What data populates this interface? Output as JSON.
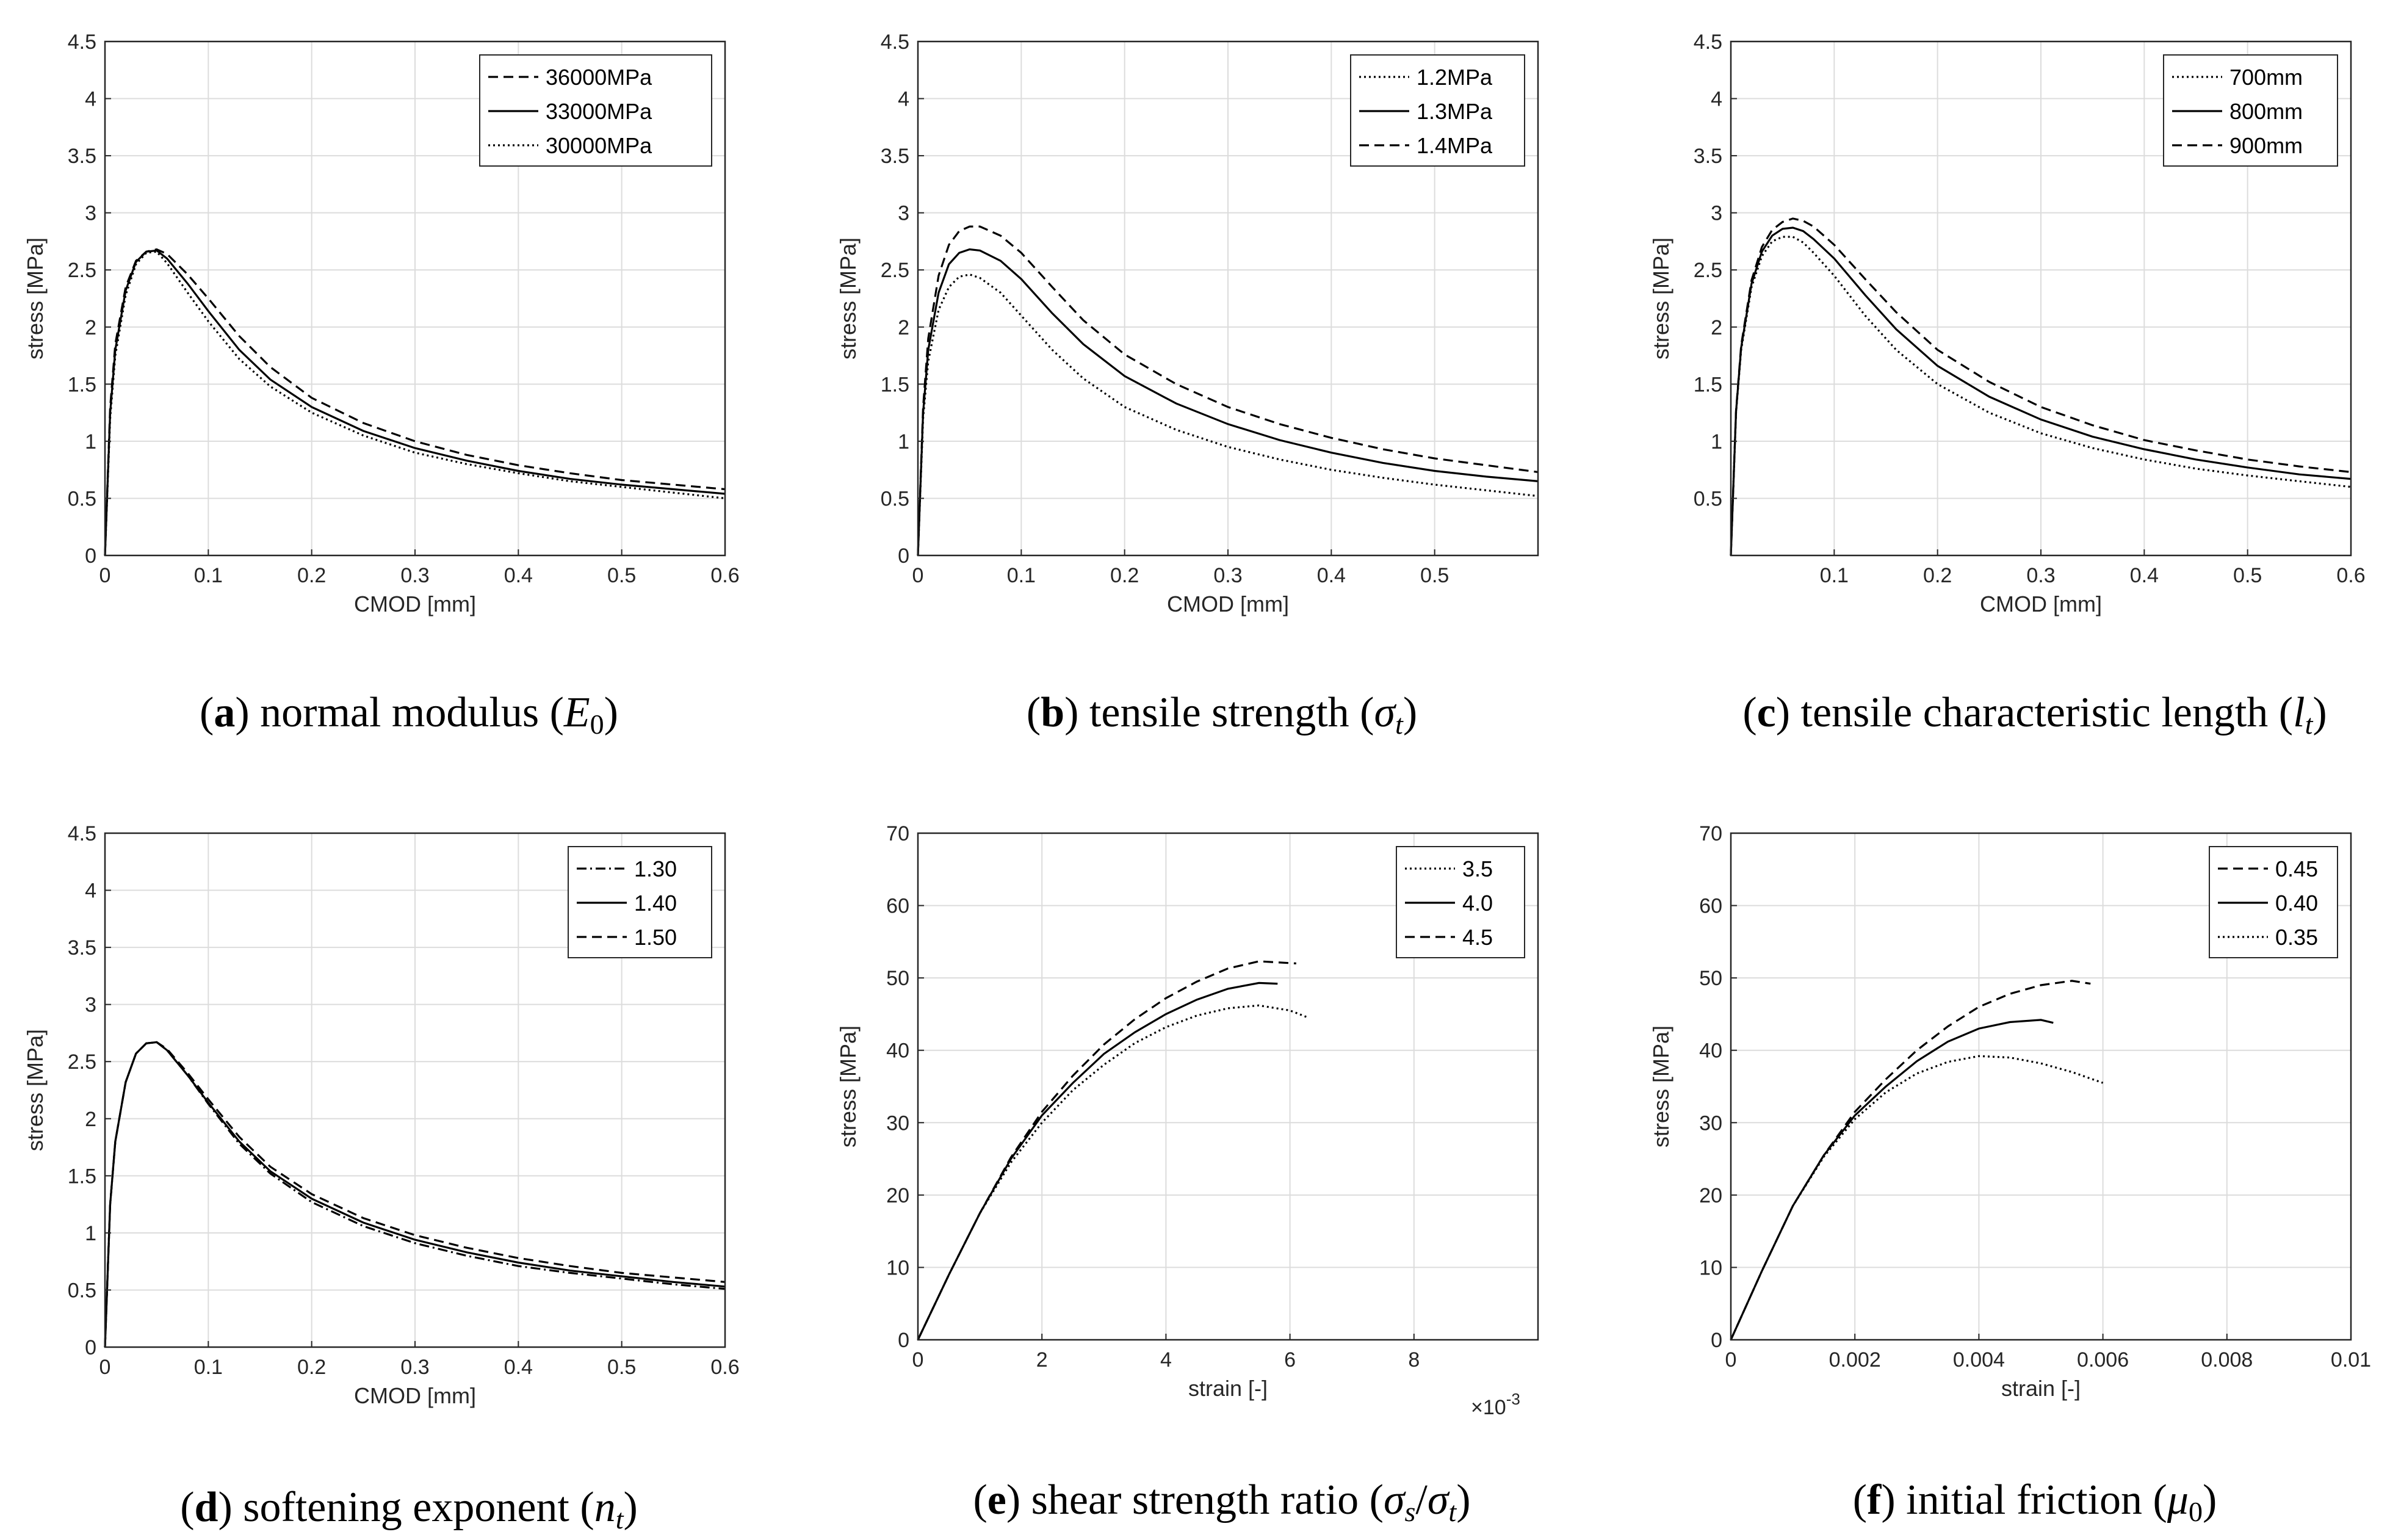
{
  "chart_data": [
    {
      "type": "line",
      "id": "a",
      "caption": {
        "letter": "a",
        "text": "normal modulus",
        "symbol": "E",
        "sub": "0"
      },
      "xlabel": "CMOD [mm]",
      "ylabel": "stress [MPa]",
      "xlim": [
        0,
        0.6
      ],
      "ylim": [
        0,
        4.5
      ],
      "xticks": [
        0,
        0.1,
        0.2,
        0.3,
        0.4,
        0.5,
        0.6
      ],
      "xtick_labels": [
        "0",
        "0.1",
        "0.2",
        "0.3",
        "0.4",
        "0.5",
        "0.6"
      ],
      "yticks": [
        0,
        0.5,
        1,
        1.5,
        2,
        2.5,
        3,
        3.5,
        4,
        4.5
      ],
      "ytick_labels": [
        "0",
        "0.5",
        "1",
        "1.5",
        "2",
        "2.5",
        "3",
        "3.5",
        "4",
        "4.5"
      ],
      "grid": true,
      "legend": "top-right",
      "series": [
        {
          "name": "36000MPa",
          "style": "dashed",
          "x": [
            0,
            0.005,
            0.01,
            0.02,
            0.03,
            0.04,
            0.05,
            0.06,
            0.08,
            0.1,
            0.13,
            0.16,
            0.2,
            0.25,
            0.3,
            0.35,
            0.4,
            0.45,
            0.5,
            0.55,
            0.6
          ],
          "y": [
            0,
            1.3,
            1.85,
            2.35,
            2.58,
            2.66,
            2.68,
            2.64,
            2.46,
            2.25,
            1.92,
            1.65,
            1.38,
            1.16,
            1.0,
            0.88,
            0.79,
            0.72,
            0.66,
            0.62,
            0.58
          ]
        },
        {
          "name": "33000MPa",
          "style": "solid",
          "x": [
            0,
            0.005,
            0.01,
            0.02,
            0.03,
            0.04,
            0.05,
            0.06,
            0.08,
            0.1,
            0.13,
            0.16,
            0.2,
            0.25,
            0.3,
            0.35,
            0.4,
            0.45,
            0.5,
            0.55,
            0.6
          ],
          "y": [
            0,
            1.25,
            1.8,
            2.32,
            2.57,
            2.66,
            2.67,
            2.6,
            2.38,
            2.14,
            1.8,
            1.54,
            1.3,
            1.09,
            0.94,
            0.83,
            0.74,
            0.67,
            0.62,
            0.58,
            0.54
          ]
        },
        {
          "name": "30000MPa",
          "style": "dotted",
          "x": [
            0,
            0.005,
            0.01,
            0.02,
            0.03,
            0.04,
            0.05,
            0.06,
            0.08,
            0.1,
            0.13,
            0.16,
            0.2,
            0.25,
            0.3,
            0.35,
            0.4,
            0.45,
            0.5,
            0.55,
            0.6
          ],
          "y": [
            0,
            1.2,
            1.75,
            2.28,
            2.55,
            2.65,
            2.66,
            2.56,
            2.3,
            2.05,
            1.72,
            1.48,
            1.25,
            1.05,
            0.9,
            0.8,
            0.72,
            0.65,
            0.6,
            0.55,
            0.5
          ]
        }
      ]
    },
    {
      "type": "line",
      "id": "b",
      "caption": {
        "letter": "b",
        "text": "tensile strength",
        "symbol": "σ",
        "sub": "t"
      },
      "xlabel": "CMOD [mm]",
      "ylabel": "stress [MPa]",
      "xlim": [
        0,
        0.6
      ],
      "ylim": [
        0,
        4.5
      ],
      "xticks": [
        0,
        0.1,
        0.2,
        0.3,
        0.4,
        0.5
      ],
      "xtick_labels": [
        "0",
        "0.1",
        "0.2",
        "0.3",
        "0.4",
        "0.5"
      ],
      "yticks": [
        0,
        0.5,
        1,
        1.5,
        2,
        2.5,
        3,
        3.5,
        4,
        4.5
      ],
      "ytick_labels": [
        "0",
        "0.5",
        "1",
        "1.5",
        "2",
        "2.5",
        "3",
        "3.5",
        "4",
        "4.5"
      ],
      "grid": true,
      "legend": "top-right",
      "series": [
        {
          "name": "1.2MPa",
          "style": "dotted",
          "x": [
            0,
            0.005,
            0.01,
            0.02,
            0.03,
            0.04,
            0.05,
            0.06,
            0.08,
            0.1,
            0.13,
            0.16,
            0.2,
            0.25,
            0.3,
            0.35,
            0.4,
            0.45,
            0.5,
            0.55,
            0.6
          ],
          "y": [
            0,
            1.2,
            1.7,
            2.15,
            2.35,
            2.44,
            2.46,
            2.43,
            2.3,
            2.1,
            1.8,
            1.55,
            1.3,
            1.1,
            0.95,
            0.84,
            0.75,
            0.68,
            0.62,
            0.57,
            0.52
          ]
        },
        {
          "name": "1.3MPa",
          "style": "solid",
          "x": [
            0,
            0.005,
            0.01,
            0.02,
            0.03,
            0.04,
            0.05,
            0.06,
            0.08,
            0.1,
            0.13,
            0.16,
            0.2,
            0.25,
            0.3,
            0.35,
            0.4,
            0.45,
            0.5,
            0.55,
            0.6
          ],
          "y": [
            0,
            1.25,
            1.8,
            2.3,
            2.55,
            2.65,
            2.68,
            2.67,
            2.58,
            2.42,
            2.12,
            1.85,
            1.57,
            1.33,
            1.15,
            1.01,
            0.9,
            0.81,
            0.74,
            0.69,
            0.65
          ]
        },
        {
          "name": "1.4MPa",
          "style": "dashed",
          "x": [
            0,
            0.005,
            0.01,
            0.02,
            0.03,
            0.04,
            0.05,
            0.06,
            0.08,
            0.1,
            0.13,
            0.16,
            0.2,
            0.25,
            0.3,
            0.35,
            0.4,
            0.45,
            0.5,
            0.55,
            0.6
          ],
          "y": [
            0,
            1.3,
            1.9,
            2.45,
            2.72,
            2.84,
            2.88,
            2.88,
            2.8,
            2.65,
            2.35,
            2.06,
            1.76,
            1.5,
            1.3,
            1.15,
            1.03,
            0.93,
            0.85,
            0.79,
            0.73
          ]
        }
      ]
    },
    {
      "type": "line",
      "id": "c",
      "caption": {
        "letter": "c",
        "text": "tensile characteristic length",
        "symbol": "l",
        "sub": "t"
      },
      "xlabel": "CMOD [mm]",
      "ylabel": "stress [MPa]",
      "xlim": [
        0,
        0.6
      ],
      "ylim": [
        0,
        4.5
      ],
      "xticks": [
        0.1,
        0.2,
        0.3,
        0.4,
        0.5,
        0.6
      ],
      "xtick_labels": [
        "0.1",
        "0.2",
        "0.3",
        "0.4",
        "0.5",
        "0.6"
      ],
      "yticks": [
        0.5,
        1,
        1.5,
        2,
        2.5,
        3,
        3.5,
        4,
        4.5
      ],
      "ytick_labels": [
        "0.5",
        "1",
        "1.5",
        "2",
        "2.5",
        "3",
        "3.5",
        "4",
        "4.5"
      ],
      "grid": true,
      "legend": "top-right",
      "series": [
        {
          "name": "700mm",
          "style": "dotted",
          "x": [
            0,
            0.005,
            0.01,
            0.02,
            0.03,
            0.04,
            0.05,
            0.06,
            0.07,
            0.08,
            0.1,
            0.13,
            0.16,
            0.2,
            0.25,
            0.3,
            0.35,
            0.4,
            0.45,
            0.5,
            0.55,
            0.6
          ],
          "y": [
            0,
            1.25,
            1.8,
            2.35,
            2.62,
            2.75,
            2.79,
            2.79,
            2.74,
            2.65,
            2.45,
            2.1,
            1.8,
            1.5,
            1.25,
            1.07,
            0.94,
            0.84,
            0.76,
            0.7,
            0.65,
            0.6
          ]
        },
        {
          "name": "800mm",
          "style": "solid",
          "x": [
            0,
            0.005,
            0.01,
            0.02,
            0.03,
            0.04,
            0.05,
            0.06,
            0.07,
            0.08,
            0.1,
            0.13,
            0.16,
            0.2,
            0.25,
            0.3,
            0.35,
            0.4,
            0.45,
            0.5,
            0.55,
            0.6
          ],
          "y": [
            0,
            1.26,
            1.82,
            2.38,
            2.66,
            2.8,
            2.86,
            2.87,
            2.84,
            2.77,
            2.6,
            2.28,
            1.98,
            1.66,
            1.39,
            1.19,
            1.04,
            0.93,
            0.84,
            0.77,
            0.71,
            0.67
          ]
        },
        {
          "name": "900mm",
          "style": "dashed",
          "x": [
            0,
            0.005,
            0.01,
            0.02,
            0.03,
            0.04,
            0.05,
            0.06,
            0.07,
            0.08,
            0.1,
            0.13,
            0.16,
            0.2,
            0.25,
            0.3,
            0.35,
            0.4,
            0.45,
            0.5,
            0.55,
            0.6
          ],
          "y": [
            0,
            1.27,
            1.84,
            2.41,
            2.7,
            2.85,
            2.92,
            2.95,
            2.93,
            2.88,
            2.72,
            2.42,
            2.13,
            1.8,
            1.52,
            1.3,
            1.14,
            1.01,
            0.92,
            0.84,
            0.78,
            0.73
          ]
        }
      ]
    },
    {
      "type": "line",
      "id": "d",
      "caption": {
        "letter": "d",
        "text": "softening exponent",
        "symbol": "n",
        "sub": "t"
      },
      "xlabel": "CMOD [mm]",
      "ylabel": "stress [MPa]",
      "xlim": [
        0,
        0.6
      ],
      "ylim": [
        0,
        4.5
      ],
      "xticks": [
        0,
        0.1,
        0.2,
        0.3,
        0.4,
        0.5,
        0.6
      ],
      "xtick_labels": [
        "0",
        "0.1",
        "0.2",
        "0.3",
        "0.4",
        "0.5",
        "0.6"
      ],
      "yticks": [
        0,
        0.5,
        1,
        1.5,
        2,
        2.5,
        3,
        3.5,
        4,
        4.5
      ],
      "ytick_labels": [
        "0",
        "0.5",
        "1",
        "1.5",
        "2",
        "2.5",
        "3",
        "3.5",
        "4",
        "4.5"
      ],
      "grid": true,
      "legend": "top-right",
      "series": [
        {
          "name": "1.30",
          "style": "dashdot",
          "x": [
            0,
            0.005,
            0.01,
            0.02,
            0.03,
            0.04,
            0.05,
            0.06,
            0.08,
            0.1,
            0.13,
            0.16,
            0.2,
            0.25,
            0.3,
            0.35,
            0.4,
            0.45,
            0.5,
            0.55,
            0.6
          ],
          "y": [
            0,
            1.25,
            1.8,
            2.32,
            2.57,
            2.66,
            2.67,
            2.6,
            2.38,
            2.13,
            1.78,
            1.52,
            1.27,
            1.06,
            0.91,
            0.8,
            0.71,
            0.65,
            0.6,
            0.55,
            0.51
          ]
        },
        {
          "name": "1.40",
          "style": "solid",
          "x": [
            0,
            0.005,
            0.01,
            0.02,
            0.03,
            0.04,
            0.05,
            0.06,
            0.08,
            0.1,
            0.13,
            0.16,
            0.2,
            0.25,
            0.3,
            0.35,
            0.4,
            0.45,
            0.5,
            0.55,
            0.6
          ],
          "y": [
            0,
            1.25,
            1.8,
            2.32,
            2.57,
            2.66,
            2.67,
            2.6,
            2.38,
            2.14,
            1.8,
            1.54,
            1.3,
            1.09,
            0.94,
            0.83,
            0.74,
            0.67,
            0.62,
            0.57,
            0.53
          ]
        },
        {
          "name": "1.50",
          "style": "dashed",
          "x": [
            0,
            0.005,
            0.01,
            0.02,
            0.03,
            0.04,
            0.05,
            0.06,
            0.08,
            0.1,
            0.13,
            0.16,
            0.2,
            0.25,
            0.3,
            0.35,
            0.4,
            0.45,
            0.5,
            0.55,
            0.6
          ],
          "y": [
            0,
            1.25,
            1.8,
            2.32,
            2.57,
            2.66,
            2.67,
            2.61,
            2.4,
            2.17,
            1.84,
            1.58,
            1.34,
            1.13,
            0.98,
            0.87,
            0.78,
            0.71,
            0.65,
            0.61,
            0.57
          ]
        }
      ]
    },
    {
      "type": "line",
      "id": "e",
      "caption": {
        "letter": "e",
        "text": "shear strength ratio",
        "symbol": "σ",
        "sub": "s",
        "symbol2": "σ",
        "sub2": "t"
      },
      "xlabel": "strain [-]",
      "ylabel": "stress [MPa]",
      "x_multiplier": "×10",
      "x_exponent": "-3",
      "xlim": [
        0,
        10
      ],
      "ylim": [
        0,
        70
      ],
      "xticks": [
        0,
        2,
        4,
        6,
        8
      ],
      "xtick_labels": [
        "0",
        "2",
        "4",
        "6",
        "8"
      ],
      "yticks": [
        0,
        10,
        20,
        30,
        40,
        50,
        60,
        70
      ],
      "ytick_labels": [
        "0",
        "10",
        "20",
        "30",
        "40",
        "50",
        "60",
        "70"
      ],
      "grid": true,
      "legend": "top-right",
      "series": [
        {
          "name": "3.5",
          "style": "dotted",
          "x": [
            0,
            0.5,
            1,
            1.5,
            2,
            2.5,
            3,
            3.5,
            4,
            4.5,
            5,
            5.5,
            6,
            6.3
          ],
          "y": [
            0,
            9,
            17.5,
            24.5,
            30,
            34.5,
            38,
            41,
            43.2,
            44.8,
            45.8,
            46.2,
            45.5,
            44.5
          ]
        },
        {
          "name": "4.0",
          "style": "solid",
          "x": [
            0,
            0.5,
            1,
            1.5,
            2,
            2.5,
            3,
            3.5,
            4,
            4.5,
            5,
            5.5,
            5.8
          ],
          "y": [
            0,
            9,
            17.5,
            25,
            31,
            35.5,
            39.5,
            42.5,
            45,
            47,
            48.5,
            49.3,
            49.2
          ]
        },
        {
          "name": "4.5",
          "style": "dashed",
          "x": [
            0,
            0.5,
            1,
            1.5,
            2,
            2.5,
            3,
            3.5,
            4,
            4.5,
            5,
            5.5,
            6.1
          ],
          "y": [
            0,
            9,
            17.5,
            25.2,
            31.5,
            36.5,
            40.8,
            44.3,
            47.2,
            49.5,
            51.3,
            52.3,
            52
          ]
        }
      ]
    },
    {
      "type": "line",
      "id": "f",
      "caption": {
        "letter": "f",
        "text": "initial friction",
        "symbol": "μ",
        "sub": "0"
      },
      "xlabel": "strain [-]",
      "ylabel": "stress [MPa]",
      "xlim": [
        0,
        0.01
      ],
      "ylim": [
        0,
        70
      ],
      "xticks": [
        0,
        0.002,
        0.004,
        0.006,
        0.008,
        0.01
      ],
      "xtick_labels": [
        "0",
        "0.002",
        "0.004",
        "0.006",
        "0.008",
        "0.01"
      ],
      "yticks": [
        0,
        10,
        20,
        30,
        40,
        50,
        60,
        70
      ],
      "ytick_labels": [
        "0",
        "10",
        "20",
        "30",
        "40",
        "50",
        "60",
        "70"
      ],
      "grid": true,
      "legend": "top-right",
      "series": [
        {
          "name": "0.45",
          "style": "dashed",
          "x": [
            0,
            0.0005,
            0.001,
            0.0015,
            0.002,
            0.0025,
            0.003,
            0.0035,
            0.004,
            0.0045,
            0.005,
            0.0055,
            0.0058
          ],
          "y": [
            0,
            9.5,
            18.5,
            25.5,
            31.5,
            36,
            40,
            43.3,
            46,
            47.8,
            49,
            49.6,
            49.2
          ]
        },
        {
          "name": "0.40",
          "style": "solid",
          "x": [
            0,
            0.0005,
            0.001,
            0.0015,
            0.002,
            0.0025,
            0.003,
            0.0035,
            0.004,
            0.0045,
            0.005,
            0.0052
          ],
          "y": [
            0,
            9.5,
            18.5,
            25.5,
            31,
            35,
            38.5,
            41.2,
            43,
            43.9,
            44.2,
            43.8
          ]
        },
        {
          "name": "0.35",
          "style": "dotted",
          "x": [
            0,
            0.0005,
            0.001,
            0.0015,
            0.002,
            0.0025,
            0.003,
            0.0035,
            0.004,
            0.0045,
            0.005,
            0.0055,
            0.006
          ],
          "y": [
            0,
            9.5,
            18.5,
            25.3,
            30.5,
            34.2,
            36.8,
            38.4,
            39.2,
            39,
            38.2,
            37,
            35.5
          ]
        }
      ]
    }
  ]
}
